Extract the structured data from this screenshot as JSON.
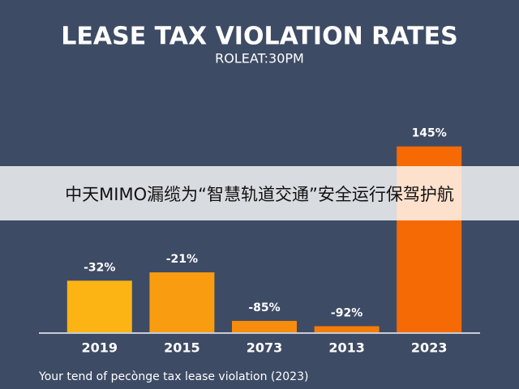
{
  "chart_data": {
    "type": "bar",
    "title": "LEASE TAX VIOLATION RATES",
    "subtitle": "ROLEAT:30PM",
    "categories": [
      "2019",
      "2015",
      "2073",
      "2013",
      "2023"
    ],
    "values": [
      -32,
      -21,
      -85,
      -92,
      145
    ],
    "value_labels": [
      "-32%",
      "-21%",
      "-85%",
      "-92%",
      "145%"
    ],
    "colors": [
      "#fbb414",
      "#f99c10",
      "#f88c0c",
      "#f67c08",
      "#f56a05"
    ],
    "ylim": [
      -100,
      150
    ],
    "footnote": "Your tend of pecònge tax lease violation (2023)"
  },
  "overlay": {
    "text": "中天MIMO漏缆为“智慧轨道交通”安全运行保驾护航"
  }
}
